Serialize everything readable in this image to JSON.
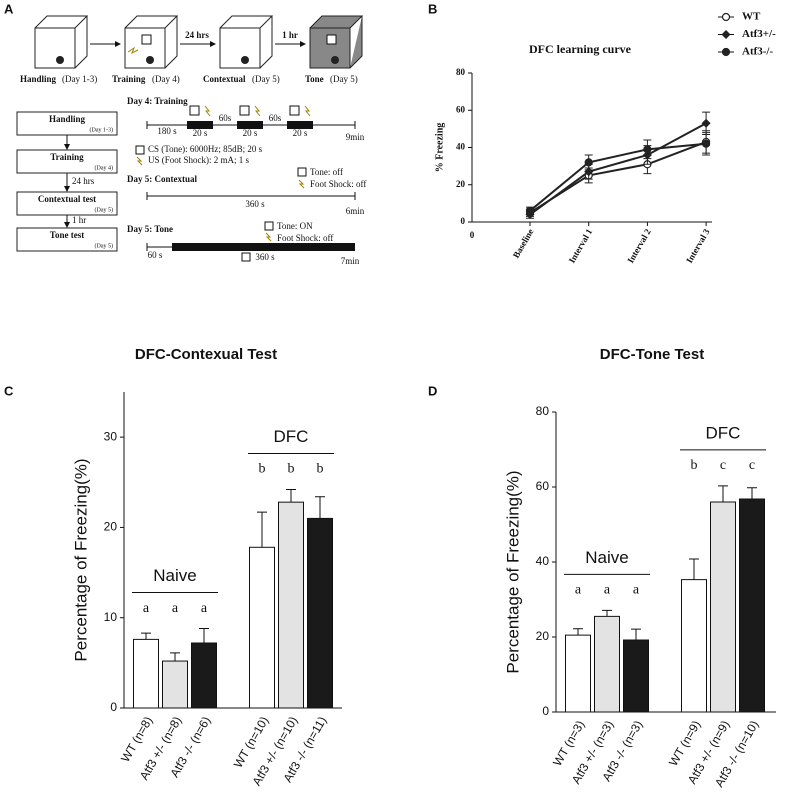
{
  "diagram": {
    "panel_label": "A",
    "top_row": [
      {
        "name": "Handling",
        "day": "(Day 1-3)"
      },
      {
        "name": "Training",
        "day": "(Day 4)"
      },
      {
        "name": "Contextual",
        "day": "(Day 5)"
      },
      {
        "name": "Tone",
        "day": "(Day 5)"
      }
    ],
    "top_arrows": [
      "24 hrs",
      "1 hr"
    ],
    "flow_boxes": [
      {
        "name": "Handling",
        "day": "(Day 1-3)"
      },
      {
        "name": "Training",
        "day": "(Day 4)"
      },
      {
        "name": "Contextual test",
        "day": "(Day 5)"
      },
      {
        "name": "Tone test",
        "day": "(Day 5)"
      }
    ],
    "flow_arrows": [
      "24 hrs",
      "1 hr"
    ],
    "training": {
      "title": "Day 4: Training",
      "labels": [
        "180 s",
        "20 s",
        "60s",
        "20 s",
        "60s",
        "20 s",
        "9min"
      ],
      "legend": [
        "CS (Tone): 6000Hz; 85dB; 20 s",
        "US (Foot Shock): 2 mA; 1 s"
      ]
    },
    "contextual": {
      "title": "Day 5: Contextual",
      "notes": [
        "Tone: off",
        "Foot Shock: off"
      ],
      "labels": [
        "360 s",
        "6min"
      ]
    },
    "tone": {
      "title": "Day 5: Tone",
      "notes": [
        "Tone: ON",
        "Foot Shock: off"
      ],
      "labels": [
        "60 s",
        "360 s",
        "7min"
      ]
    }
  },
  "chart_data": [
    {
      "type": "line",
      "panel_label": "B",
      "title": "DFC learning curve",
      "y_label": "% Freezing",
      "x_origin_label": "0",
      "categories": [
        "Baseline",
        "Interval 1",
        "Interval 2",
        "Interval 3"
      ],
      "ylim": [
        0,
        80
      ],
      "yticks": [
        0,
        20,
        40,
        60,
        80
      ],
      "legend": "top-right",
      "series": [
        {
          "name": "WT",
          "color": "#222222",
          "marker": "circle-open",
          "values": [
            5,
            25,
            31,
            43
          ],
          "errors": [
            2,
            4,
            5,
            6
          ]
        },
        {
          "name": "Atf3+/-",
          "color": "#222222",
          "marker": "diamond",
          "values": [
            4,
            27,
            36,
            53
          ],
          "errors": [
            2,
            4,
            5,
            6
          ]
        },
        {
          "name": "Atf3-/-",
          "color": "#222222",
          "marker": "circle",
          "values": [
            6,
            32,
            39,
            42
          ],
          "errors": [
            2,
            4,
            5,
            6
          ]
        }
      ]
    },
    {
      "type": "bar",
      "panel_label": "C",
      "title": "DFC-Contexual Test",
      "y_label": "Percentage of Freezing(%)",
      "categories": [
        "WT (n=8)",
        "Atf3 +/- (n=8)",
        "Atf3 -/- (n=6)",
        "WT (n=10)",
        "Atf3 +/- (n=10)",
        "Atf3 -/- (n=11)"
      ],
      "values": [
        7.6,
        5.2,
        7.2,
        17.8,
        22.8,
        21.0
      ],
      "errors": [
        0.7,
        0.9,
        1.6,
        3.9,
        1.4,
        2.4
      ],
      "colors": [
        "#ffffff",
        "#e3e3e3",
        "#1a1a1a",
        "#ffffff",
        "#e3e3e3",
        "#1a1a1a"
      ],
      "letters": [
        "a",
        "a",
        "a",
        "b",
        "b",
        "b"
      ],
      "group_labels": [
        "Naive",
        "DFC"
      ],
      "ylim": [
        0,
        35
      ],
      "yticks": [
        0,
        10,
        20,
        30
      ]
    },
    {
      "type": "bar",
      "panel_label": "D",
      "title": "DFC-Tone Test",
      "y_label": "Percentage of Freezing(%)",
      "categories": [
        "WT (n=3)",
        "Atf3 +/- (n=3)",
        "Atf3 -/- (n=3)",
        "WT (n=9)",
        "Atf3 +/- (n=9)",
        "Atf3 -/- (n=10)"
      ],
      "values": [
        20.5,
        25.5,
        19.2,
        35.3,
        56.0,
        56.8
      ],
      "errors": [
        1.7,
        1.6,
        2.9,
        5.5,
        4.3,
        3.0
      ],
      "colors": [
        "#ffffff",
        "#e3e3e3",
        "#1a1a1a",
        "#ffffff",
        "#e3e3e3",
        "#1a1a1a"
      ],
      "letters": [
        "a",
        "a",
        "a",
        "b",
        "c",
        "c"
      ],
      "group_labels": [
        "Naive",
        "DFC"
      ],
      "ylim": [
        0,
        80
      ],
      "yticks": [
        0,
        20,
        40,
        60,
        80
      ]
    }
  ]
}
